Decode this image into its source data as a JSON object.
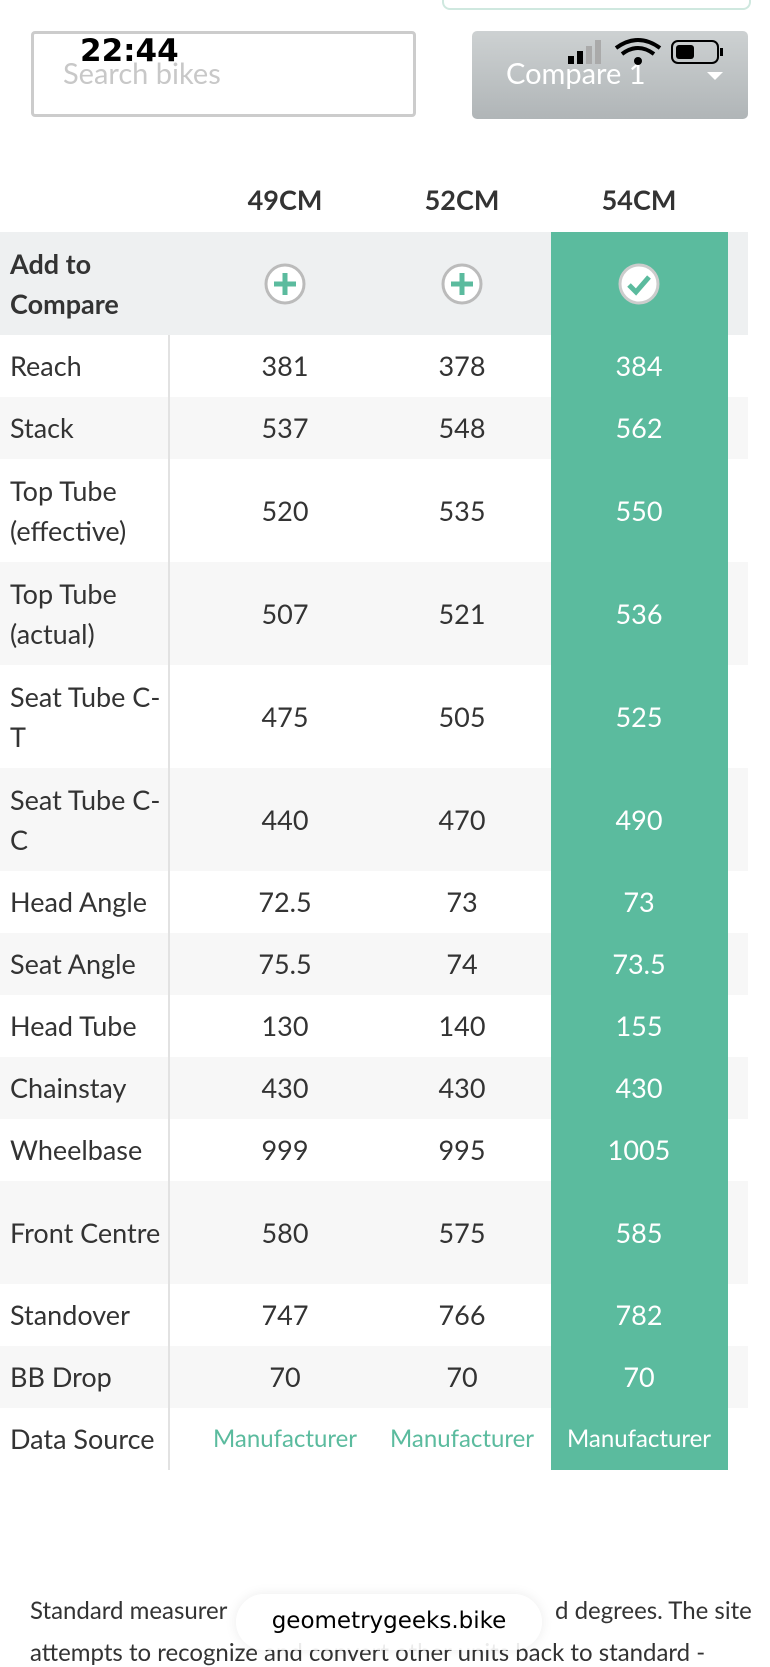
{
  "status_bar": {
    "time": "22:44"
  },
  "search": {
    "placeholder": "Search bikes"
  },
  "compare_button": {
    "label": "Compare 1"
  },
  "table": {
    "columns": [
      "49CM",
      "52CM",
      "54CM"
    ],
    "compare_row": {
      "label": "Add to Compare"
    },
    "rows": [
      {
        "label": "Reach",
        "values": [
          381,
          378,
          384
        ]
      },
      {
        "label": "Stack",
        "values": [
          537,
          548,
          562
        ]
      },
      {
        "label": "Top Tube (effective)",
        "values": [
          520,
          535,
          550
        ]
      },
      {
        "label": "Top Tube (actual)",
        "values": [
          507,
          521,
          536
        ]
      },
      {
        "label": "Seat Tube C-T",
        "values": [
          475,
          505,
          525
        ]
      },
      {
        "label": "Seat Tube C-C",
        "values": [
          440,
          470,
          490
        ]
      },
      {
        "label": "Head Angle",
        "values": [
          72.5,
          73,
          73
        ]
      },
      {
        "label": "Seat Angle",
        "values": [
          75.5,
          74,
          73.5
        ]
      },
      {
        "label": "Head Tube",
        "values": [
          130,
          140,
          155
        ]
      },
      {
        "label": "Chainstay",
        "values": [
          430,
          430,
          430
        ]
      },
      {
        "label": "Wheelbase",
        "values": [
          999,
          995,
          1005
        ]
      },
      {
        "label": "Front Centre",
        "values": [
          580,
          575,
          585
        ]
      },
      {
        "label": "Standover",
        "values": [
          747,
          766,
          782
        ]
      },
      {
        "label": "BB Drop",
        "values": [
          70,
          70,
          70
        ]
      },
      {
        "label": "Data Source",
        "values": [
          "Manufacturer",
          "Manufacturer",
          "Manufacturer"
        ]
      }
    ]
  },
  "footer": {
    "line1_left": "Standard measurer",
    "line1_right": "d degrees. The site",
    "line2": "attempts to recognize and convert other units back to standard -"
  },
  "url_pill": {
    "url": "geometrygeeks.bike"
  }
}
